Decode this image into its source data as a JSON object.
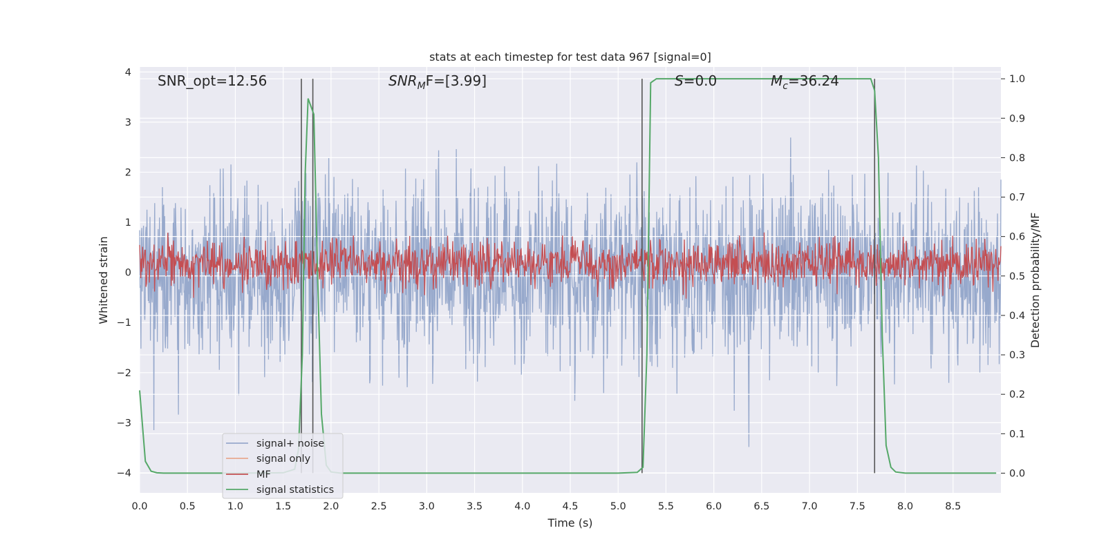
{
  "chart_data": {
    "type": "line",
    "title": "stats at each timestep for test data 967 [signal=0]",
    "xlabel": "Time (s)",
    "ylabel_left": "Whitened strain",
    "ylabel_right": "Detection probability/MF",
    "xlim": [
      0.0,
      9.0
    ],
    "ylim_left": [
      -4.4,
      4.1
    ],
    "ylim_right": [
      -0.05,
      1.03
    ],
    "xticks": [
      0.0,
      0.5,
      1.0,
      1.5,
      2.0,
      2.5,
      3.0,
      3.5,
      4.0,
      4.5,
      5.0,
      5.5,
      6.0,
      6.5,
      7.0,
      7.5,
      8.0,
      8.5
    ],
    "xtick_labels": [
      "0.0",
      "0.5",
      "1.0",
      "1.5",
      "2.0",
      "2.5",
      "3.0",
      "3.5",
      "4.0",
      "4.5",
      "5.0",
      "5.5",
      "6.0",
      "6.5",
      "7.0",
      "7.5",
      "8.0",
      "8.5"
    ],
    "yticks_left": [
      -4,
      -3,
      -2,
      -1,
      0,
      1,
      2,
      3,
      4
    ],
    "ytick_labels_left": [
      "−4",
      "−3",
      "−2",
      "−1",
      "0",
      "1",
      "2",
      "3",
      "4"
    ],
    "yticks_right": [
      0.0,
      0.1,
      0.2,
      0.3,
      0.4,
      0.5,
      0.6,
      0.7,
      0.8,
      0.9,
      1.0
    ],
    "ytick_labels_right": [
      "0.0",
      "0.1",
      "0.2",
      "0.3",
      "0.4",
      "0.5",
      "0.6",
      "0.7",
      "0.8",
      "0.9",
      "1.0"
    ],
    "annotations": {
      "snr_opt": "SNR_opt=12.56",
      "snr_mf_base": "SNR",
      "snr_mf_sub": "M",
      "snr_mf_rest": "F=[3.99]",
      "s_label": "S",
      "s_value": "=0.0",
      "mc_base": "M",
      "mc_sub": "c",
      "mc_value": "=36.24"
    },
    "noise": {
      "name": "signal+ noise",
      "color": "#97a9cc",
      "samples": 2000,
      "sigma": 0.85,
      "seed": 967
    },
    "mf": {
      "name": "MF",
      "color": "#c44e52",
      "center": 0.53,
      "spread": 0.03,
      "samples": 1500
    },
    "signal_only": {
      "name": "signal only",
      "color": "#e8a98f"
    },
    "stats": {
      "name": "signal statistics",
      "color": "#55a868",
      "x": [
        0.0,
        0.06,
        0.12,
        0.18,
        0.25,
        0.4,
        1.0,
        1.5,
        1.62,
        1.66,
        1.7,
        1.73,
        1.76,
        1.82,
        1.86,
        1.9,
        1.95,
        2.0,
        2.1,
        3.0,
        4.0,
        5.0,
        5.2,
        5.26,
        5.3,
        5.34,
        5.4,
        5.5,
        6.0,
        7.0,
        7.5,
        7.6,
        7.64,
        7.68,
        7.72,
        7.76,
        7.8,
        7.85,
        7.9,
        8.0,
        8.5,
        8.95
      ],
      "y": [
        0.21,
        0.03,
        0.005,
        0.001,
        0.0,
        0.0,
        0.0,
        0.001,
        0.01,
        0.06,
        0.3,
        0.76,
        0.95,
        0.91,
        0.5,
        0.15,
        0.02,
        0.003,
        0.0,
        0.0,
        0.0,
        0.0,
        0.002,
        0.015,
        0.3,
        0.99,
        1.0,
        1.0,
        1.0,
        1.0,
        1.0,
        1.0,
        1.0,
        0.97,
        0.8,
        0.35,
        0.07,
        0.015,
        0.003,
        0.0,
        0.0,
        0.0
      ]
    },
    "vlines": [
      {
        "x": 1.69,
        "color": "#555555"
      },
      {
        "x": 1.81,
        "color": "#555555"
      },
      {
        "x": 5.25,
        "color": "#555555"
      },
      {
        "x": 7.68,
        "color": "#555555"
      }
    ],
    "legend": {
      "placement": "lower-left",
      "entries": [
        {
          "label": "signal+ noise",
          "color": "#97a9cc"
        },
        {
          "label": "signal only",
          "color": "#e8a98f"
        },
        {
          "label": "MF",
          "color": "#c44e52"
        },
        {
          "label": "signal statistics",
          "color": "#55a868"
        }
      ]
    },
    "colors": {
      "background": "#eaeaf2",
      "grid": "#ffffff"
    }
  }
}
